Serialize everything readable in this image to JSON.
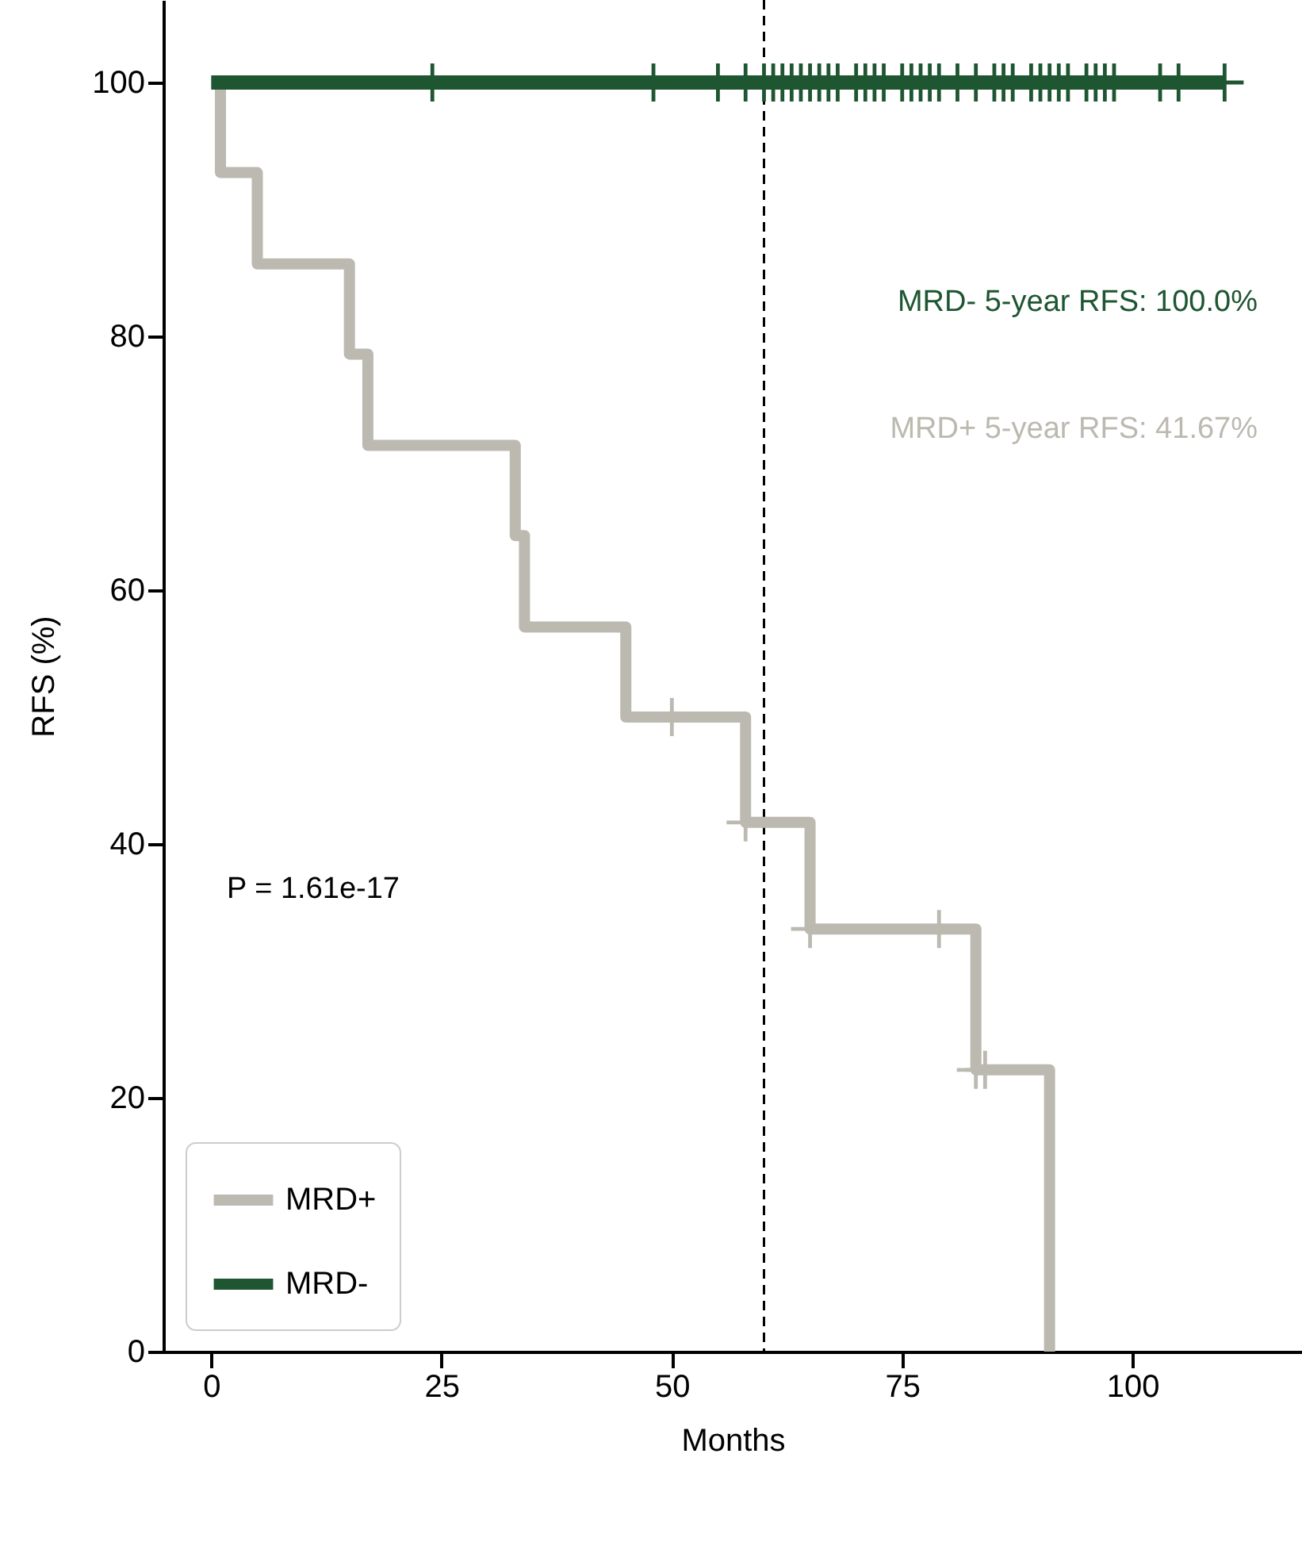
{
  "chart_data": {
    "type": "step",
    "xlabel": "Months",
    "ylabel": "RFS (%)",
    "xlim": [
      -5.2,
      118.4
    ],
    "ylim": [
      0,
      106.5
    ],
    "xticks": [
      0,
      25,
      50,
      75,
      100
    ],
    "yticks": [
      0,
      20,
      40,
      60,
      80,
      100
    ],
    "legend": "bottom left",
    "series": [
      {
        "name": "MRD+",
        "color": "#bcb9b0",
        "x": [
          0,
          1,
          5,
          15,
          17,
          33,
          34,
          45,
          58,
          65,
          83,
          91
        ],
        "values": [
          100,
          92.9,
          85.7,
          78.6,
          71.4,
          64.3,
          57.1,
          50,
          41.7,
          33.3,
          22.2,
          0
        ]
      },
      {
        "name": "MRD-",
        "color": "#1e5631",
        "x": [
          0,
          110
        ],
        "values": [
          100,
          100
        ]
      },
      {
        "type": "scatter",
        "marker": "cross",
        "color": "#bcb9b0",
        "x": [
          50,
          58,
          65,
          79,
          83,
          84
        ],
        "values": [
          50,
          41.7,
          33.3,
          33.3,
          22.2,
          22.2
        ]
      },
      {
        "type": "scatter",
        "marker": "cross",
        "color": "#1e5631",
        "x": [
          24,
          48,
          55,
          58,
          60,
          61,
          62,
          63,
          64,
          65,
          66,
          67,
          68,
          70,
          71,
          72,
          73,
          75,
          76,
          77,
          78,
          79,
          81,
          83,
          85,
          86,
          87,
          89,
          90,
          91,
          92,
          93,
          95,
          96,
          97,
          98,
          103,
          105,
          110
        ],
        "values": [
          100,
          100,
          100,
          100,
          100,
          100,
          100,
          100,
          100,
          100,
          100,
          100,
          100,
          100,
          100,
          100,
          100,
          100,
          100,
          100,
          100,
          100,
          100,
          100,
          100,
          100,
          100,
          100,
          100,
          100,
          100,
          100,
          100,
          100,
          100,
          100,
          100,
          100,
          100
        ]
      }
    ],
    "ref_lines": [
      {
        "axis": "x",
        "value": 60,
        "color": "#000000",
        "line_style": "dashed"
      }
    ],
    "annotations": [
      "MRD- 5-year RFS: 100.0%",
      "MRD+ 5-year RFS: 41.67%",
      "P = 1.61e-17"
    ]
  }
}
